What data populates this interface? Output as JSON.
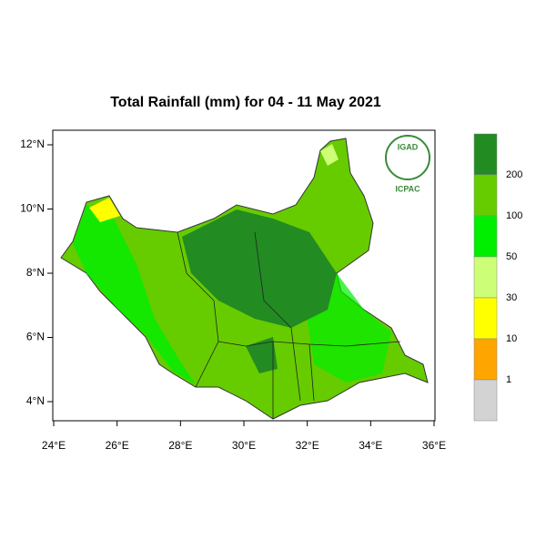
{
  "title": "Total Rainfall (mm) for 04 - 11 May 2021",
  "logo": {
    "top": "IGAD",
    "bottom": "ICPAC"
  },
  "map": {
    "xlim": [
      24,
      36
    ],
    "ylim": [
      12,
      4
    ],
    "xticks": [
      {
        "value": 24,
        "label": "24°E"
      },
      {
        "value": 26,
        "label": "26°E"
      },
      {
        "value": 28,
        "label": "28°E"
      },
      {
        "value": 30,
        "label": "30°E"
      },
      {
        "value": 32,
        "label": "32°E"
      },
      {
        "value": 34,
        "label": "34°E"
      },
      {
        "value": 36,
        "label": "36°E"
      }
    ],
    "yticks": [
      {
        "value": 12,
        "label": "12°N"
      },
      {
        "value": 10,
        "label": "10°N"
      },
      {
        "value": 8,
        "label": "8°N"
      },
      {
        "value": 6,
        "label": "6°N"
      },
      {
        "value": 4,
        "label": "4°N"
      }
    ]
  },
  "legend": {
    "colors": [
      "#228b22",
      "#66cc00",
      "#00ee00",
      "#ccff77",
      "#ffff00",
      "#ffa500",
      "#d3d3d3"
    ],
    "labels": [
      "200",
      "100",
      "50",
      "30",
      "10",
      "1"
    ]
  }
}
